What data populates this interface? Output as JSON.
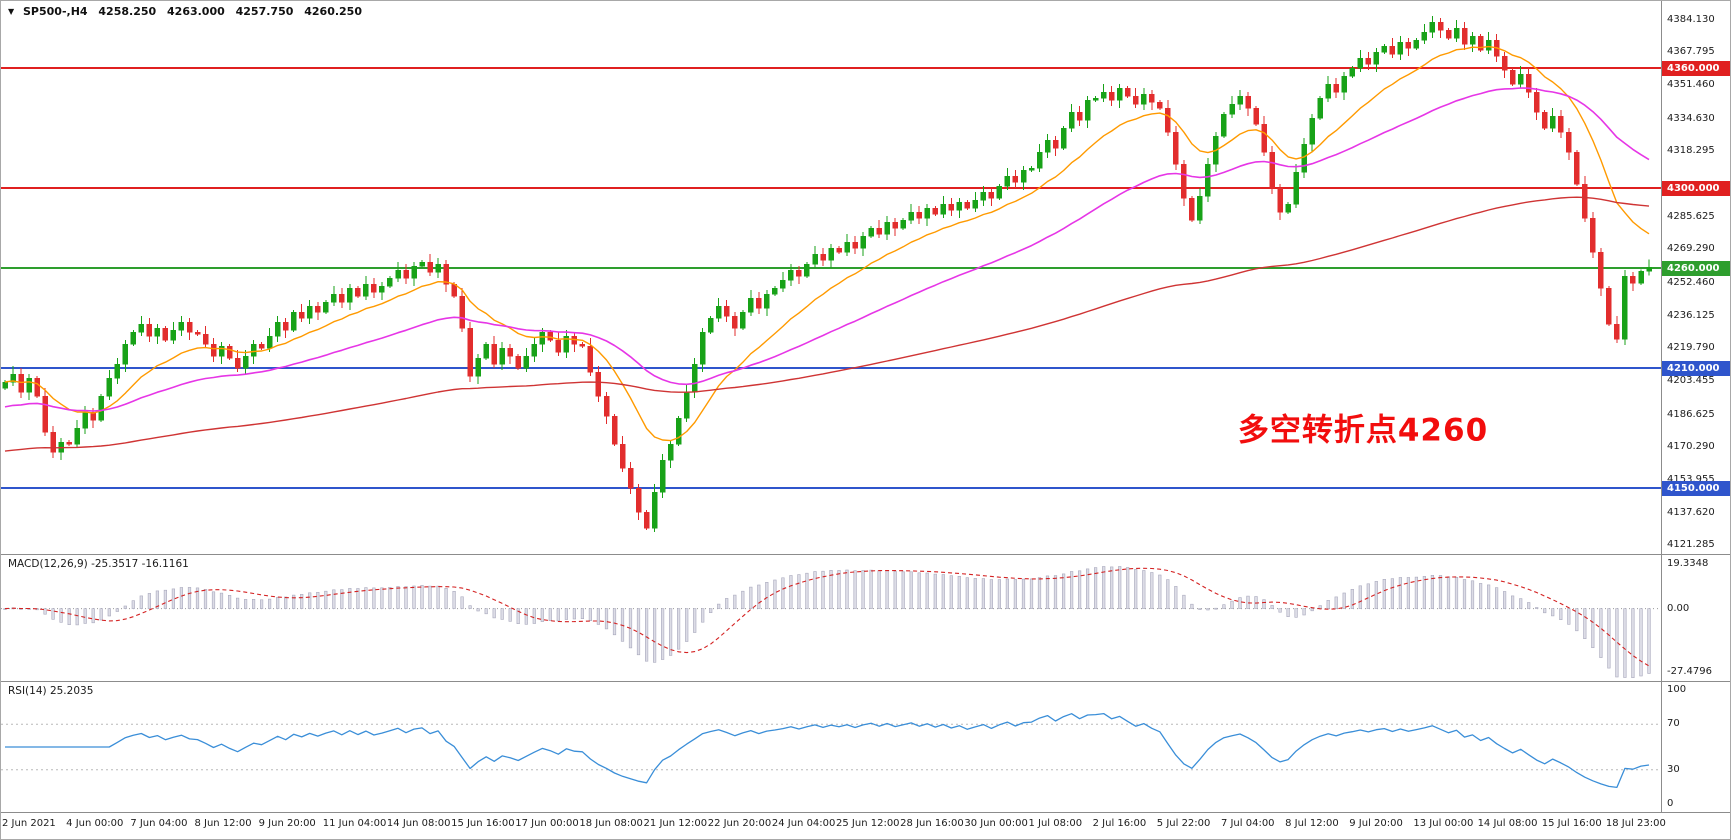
{
  "header": {
    "dropdown_icon": "▼",
    "symbol": "SP500-,H4",
    "open": "4258.250",
    "high": "4263.000",
    "low": "4257.750",
    "close": "4260.250"
  },
  "chart_data": {
    "type": "candlestick",
    "symbol": "SP500-",
    "timeframe": "H4",
    "current_bar": {
      "open": 4258.25,
      "high": 4263.0,
      "low": 4257.75,
      "close": 4260.25
    },
    "price_axis_ticks": [
      4384.13,
      4367.795,
      4351.46,
      4334.63,
      4318.295,
      4285.625,
      4269.29,
      4252.46,
      4236.125,
      4219.79,
      4203.455,
      4186.625,
      4170.29,
      4153.955,
      4137.62,
      4121.285
    ],
    "hlines": [
      {
        "price": 4360.0,
        "label": "4360.000",
        "color": "#e02020"
      },
      {
        "price": 4300.0,
        "label": "4300.000",
        "color": "#e02020"
      },
      {
        "price": 4260.0,
        "label": "4260.000",
        "color": "#2e9e2e"
      },
      {
        "price": 4210.0,
        "label": "4210.000",
        "color": "#2f55cc"
      },
      {
        "price": 4150.0,
        "label": "4150.000",
        "color": "#2f55cc"
      }
    ],
    "annotation": {
      "text": "多空转折点4260",
      "color": "#f20d0d"
    },
    "x_labels": [
      "2 Jun 2021",
      "4 Jun 00:00",
      "7 Jun 04:00",
      "8 Jun 12:00",
      "9 Jun 20:00",
      "11 Jun 04:00",
      "14 Jun 08:00",
      "15 Jun 16:00",
      "17 Jun 00:00",
      "18 Jun 08:00",
      "21 Jun 12:00",
      "22 Jun 20:00",
      "24 Jun 04:00",
      "25 Jun 12:00",
      "28 Jun 16:00",
      "30 Jun 00:00",
      "1 Jul 08:00",
      "2 Jul 16:00",
      "5 Jul 22:00",
      "7 Jul 04:00",
      "8 Jul 12:00",
      "9 Jul 20:00",
      "13 Jul 00:00",
      "14 Jul 08:00",
      "15 Jul 16:00",
      "18 Jul 23:00"
    ],
    "bars_per_label": 8,
    "first_open": 4200,
    "up_color": "#18a218",
    "down_color": "#e22d2d",
    "closes": [
      4203,
      4207,
      4198,
      4205,
      4196,
      4178,
      4168,
      4173,
      4172,
      4180,
      4188,
      4184,
      4196,
      4205,
      4212,
      4222,
      4228,
      4232,
      4226,
      4230,
      4224,
      4229,
      4233,
      4228,
      4227,
      4222,
      4216,
      4221,
      4215,
      4210,
      4216,
      4222,
      4220,
      4226,
      4233,
      4229,
      4238,
      4235,
      4241,
      4238,
      4243,
      4247,
      4243,
      4250,
      4246,
      4252,
      4248,
      4251,
      4255,
      4259,
      4255,
      4261,
      4263,
      4258,
      4262,
      4252,
      4246,
      4230,
      4206,
      4215,
      4222,
      4212,
      4220,
      4216,
      4210,
      4216,
      4222,
      4228,
      4224,
      4218,
      4226,
      4222,
      4221,
      4208,
      4196,
      4186,
      4172,
      4160,
      4150,
      4138,
      4130,
      4148,
      4164,
      4172,
      4185,
      4198,
      4212,
      4228,
      4235,
      4241,
      4236,
      4230,
      4238,
      4245,
      4240,
      4247,
      4250,
      4254,
      4259,
      4256,
      4262,
      4267,
      4264,
      4270,
      4268,
      4273,
      4270,
      4276,
      4280,
      4277,
      4283,
      4280,
      4284,
      4288,
      4285,
      4290,
      4287,
      4292,
      4289,
      4293,
      4290,
      4294,
      4298,
      4295,
      4301,
      4306,
      4303,
      4309,
      4310,
      4318,
      4324,
      4320,
      4330,
      4338,
      4334,
      4344,
      4345,
      4348,
      4344,
      4350,
      4346,
      4342,
      4347,
      4343,
      4340,
      4328,
      4312,
      4295,
      4284,
      4296,
      4312,
      4326,
      4337,
      4342,
      4346,
      4340,
      4332,
      4318,
      4300,
      4288,
      4292,
      4308,
      4322,
      4335,
      4345,
      4352,
      4348,
      4356,
      4360,
      4365,
      4362,
      4368,
      4371,
      4367,
      4373,
      4370,
      4374,
      4378,
      4383,
      4379,
      4375,
      4380,
      4372,
      4376,
      4369,
      4374,
      4366,
      4359,
      4352,
      4357,
      4348,
      4338,
      4330,
      4336,
      4328,
      4318,
      4302,
      4285,
      4268,
      4250,
      4232,
      4224.5,
      4256,
      4252.5,
      4258.3,
      4260.3
    ],
    "ma_lines": [
      {
        "name": "ma-fast",
        "period": 14,
        "seed": 4203,
        "color": "#ff9a00",
        "width": 1.4
      },
      {
        "name": "ma-mid",
        "period": 45,
        "seed": 4190,
        "color": "#e636e6",
        "width": 1.6
      },
      {
        "name": "ma-slow",
        "period": 160,
        "seed": 4168,
        "color": "#cf3434",
        "width": 1.4
      }
    ],
    "macd": {
      "label": "MACD(12,26,9) -25.3517 -16.1161",
      "main_value": "-25.3517",
      "signal_value": "-16.1161",
      "fast": 12,
      "slow": 26,
      "signal": 9,
      "axis_labels": [
        "19.3348",
        "0.00",
        "-27.4796"
      ],
      "hist_fill": "#dcdce6",
      "hist_stroke": "#a8a8bc",
      "signal_color": "#d42222"
    },
    "rsi": {
      "label": "RSI(14) 25.2035",
      "value": "25.2035",
      "period": 14,
      "levels": [
        70,
        30
      ],
      "axis_labels": [
        "100",
        "70",
        "30",
        "0"
      ],
      "color": "#3a8ed8"
    },
    "colors": {
      "panel_border": "#8c8c8c",
      "axis_text": "#1c1c1c",
      "level_dotted": "#b8b8b8"
    }
  }
}
